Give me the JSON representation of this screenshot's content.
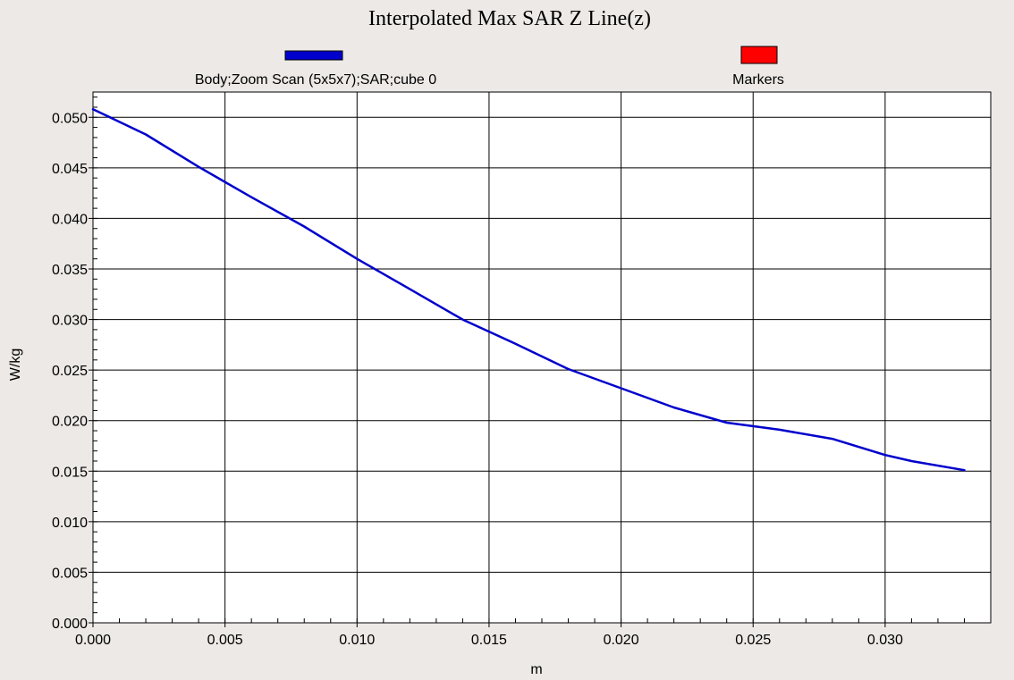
{
  "chart_data": {
    "type": "line",
    "title": "Interpolated Max SAR Z Line(z)",
    "xlabel": "m",
    "ylabel": "W/kg",
    "xlim": [
      0.0,
      0.034
    ],
    "ylim": [
      0.0,
      0.0525
    ],
    "xticks": [
      0.0,
      0.005,
      0.01,
      0.015,
      0.02,
      0.025,
      0.03
    ],
    "xtick_labels": [
      "0.000",
      "0.005",
      "0.010",
      "0.015",
      "0.020",
      "0.025",
      "0.030"
    ],
    "yticks": [
      0.0,
      0.005,
      0.01,
      0.015,
      0.02,
      0.025,
      0.03,
      0.035,
      0.04,
      0.045,
      0.05
    ],
    "ytick_labels": [
      "0.000",
      "0.005",
      "0.010",
      "0.015",
      "0.020",
      "0.025",
      "0.030",
      "0.035",
      "0.040",
      "0.045",
      "0.050"
    ],
    "grid": true,
    "legend_placement": "top",
    "legend": [
      {
        "name": "Body;Zoom Scan (5x5x7);SAR;cube 0",
        "color": "#0000cc"
      },
      {
        "name": "Markers",
        "color": "#ff0000"
      }
    ],
    "series": [
      {
        "name": "Body;Zoom Scan (5x5x7);SAR;cube 0",
        "color": "#0000cc",
        "x": [
          0.0,
          0.002,
          0.004,
          0.006,
          0.008,
          0.01,
          0.012,
          0.014,
          0.016,
          0.018,
          0.02,
          0.022,
          0.024,
          0.026,
          0.028,
          0.03,
          0.031,
          0.033
        ],
        "y": [
          0.0508,
          0.0483,
          0.0451,
          0.0421,
          0.0392,
          0.036,
          0.033,
          0.03,
          0.0276,
          0.0251,
          0.0232,
          0.0213,
          0.0198,
          0.0191,
          0.0182,
          0.0166,
          0.016,
          0.0151
        ]
      }
    ]
  }
}
